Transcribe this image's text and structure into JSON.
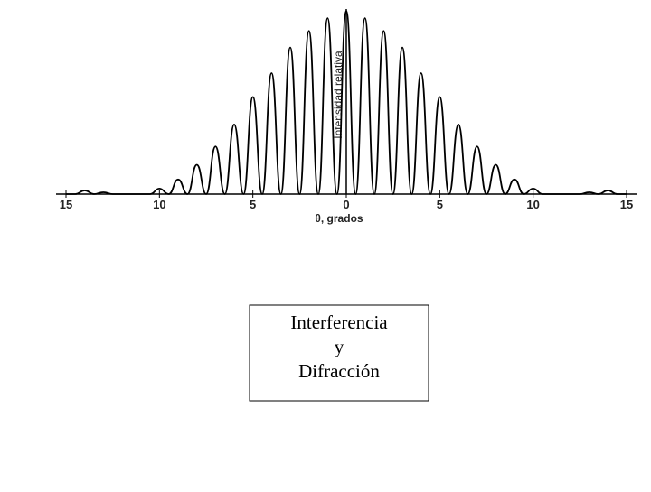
{
  "chart_data": {
    "type": "line",
    "x": [
      -15,
      -14.5,
      -14,
      -13.5,
      -13,
      -12.5,
      -12,
      -11.5,
      -11,
      -10.5,
      -10,
      -9.5,
      -9,
      -8.5,
      -8,
      -7.5,
      -7,
      -6.5,
      -6,
      -5.5,
      -5,
      -4.5,
      -4,
      -3.5,
      -3,
      -2.5,
      -2,
      -1.5,
      -1,
      -0.5,
      0,
      0.5,
      1,
      1.5,
      2,
      2.5,
      3,
      3.5,
      4,
      4.5,
      5,
      5.5,
      6,
      6.5,
      7,
      7.5,
      8,
      8.5,
      9,
      9.5,
      10,
      10.5,
      11,
      11.5,
      12,
      12.5,
      13,
      13.5,
      14,
      14.5,
      15
    ],
    "series": [
      {
        "color": "#000000",
        "values": [
          0,
          0,
          0.02,
          0,
          0.01,
          0,
          0,
          0,
          0,
          0,
          0.03,
          0,
          0.08,
          0,
          0.16,
          0,
          0.26,
          0,
          0.38,
          0,
          0.53,
          0,
          0.66,
          0,
          0.8,
          0,
          0.89,
          0,
          0.96,
          0,
          1.0,
          0,
          0.96,
          0,
          0.89,
          0,
          0.8,
          0,
          0.66,
          0,
          0.53,
          0,
          0.38,
          0,
          0.26,
          0,
          0.16,
          0,
          0.08,
          0,
          0.03,
          0,
          0,
          0,
          0,
          0,
          0.01,
          0,
          0.02,
          0,
          0
        ]
      }
    ],
    "xlim": [
      -15,
      15
    ],
    "ylim": [
      0,
      1
    ],
    "xticks": [
      {
        "value": -15,
        "label": "15"
      },
      {
        "value": -10,
        "label": "10"
      },
      {
        "value": -5,
        "label": "5"
      },
      0,
      5,
      10,
      15
    ],
    "xlabel": "θ, grados",
    "ylabel": "Intensidad relativa",
    "annotations": [
      "Interferencia",
      "y",
      "Difracción"
    ]
  }
}
